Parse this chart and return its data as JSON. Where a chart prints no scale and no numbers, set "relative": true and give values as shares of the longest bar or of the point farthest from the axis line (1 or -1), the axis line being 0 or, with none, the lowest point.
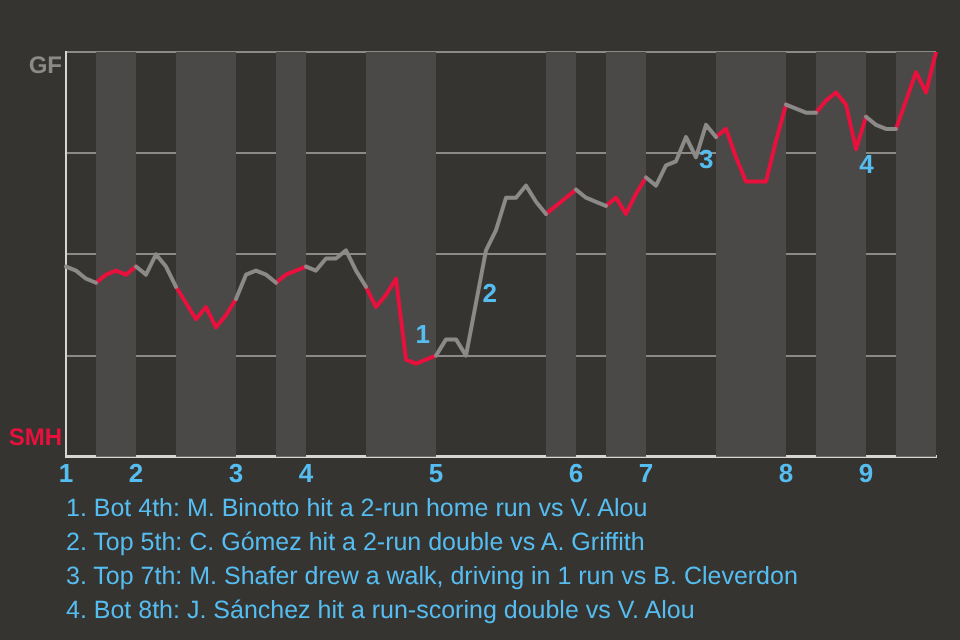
{
  "chart_data": {
    "type": "line",
    "relative": true,
    "categories": [
      "1",
      null,
      null,
      null,
      null,
      null,
      null,
      "2",
      null,
      null,
      null,
      null,
      null,
      null,
      null,
      null,
      null,
      "3",
      null,
      null,
      null,
      null,
      null,
      null,
      "4",
      null,
      null,
      null,
      null,
      null,
      null,
      null,
      null,
      null,
      null,
      null,
      null,
      "5",
      null,
      null,
      null,
      null,
      null,
      null,
      null,
      null,
      null,
      null,
      null,
      null,
      null,
      "6",
      null,
      null,
      null,
      null,
      null,
      null,
      "7",
      null,
      null,
      null,
      null,
      null,
      null,
      null,
      null,
      null,
      null,
      null,
      null,
      null,
      "8",
      null,
      null,
      null,
      null,
      null,
      null,
      null,
      "9",
      null,
      null,
      null,
      null,
      null,
      null,
      null
    ],
    "grid": "y",
    "legend": false,
    "marker": "none",
    "line_style": "solid",
    "series": [
      {
        "color": "#8c8a88",
        "values": [
          0.47,
          0.46,
          0.44,
          0.43,
          null,
          null,
          null,
          0.47,
          0.45,
          0.5,
          0.47,
          0.42,
          null,
          null,
          null,
          null,
          null,
          0.39,
          0.45,
          0.46,
          0.45,
          0.43,
          null,
          null,
          0.47,
          0.46,
          0.49,
          0.49,
          0.51,
          0.46,
          0.42,
          null,
          null,
          null,
          null,
          null,
          null,
          0.25,
          0.29,
          0.29,
          0.25,
          0.38,
          0.51,
          0.56,
          0.64,
          0.64,
          0.67,
          0.63,
          0.6,
          null,
          null,
          0.66,
          0.64,
          0.63,
          0.62,
          null,
          null,
          null,
          0.69,
          0.67,
          0.72,
          0.73,
          0.79,
          0.74,
          0.82,
          0.79,
          null,
          null,
          null,
          null,
          null,
          null,
          0.87,
          0.86,
          0.85,
          0.85,
          null,
          null,
          null,
          null,
          0.84,
          0.82,
          0.81,
          0.81,
          null,
          null,
          null,
          null
        ]
      },
      {
        "color": "#e8103c",
        "values": [
          null,
          null,
          null,
          0.43,
          0.45,
          0.46,
          0.45,
          0.47,
          null,
          null,
          null,
          0.42,
          0.38,
          0.34,
          0.37,
          0.32,
          0.35,
          0.39,
          null,
          null,
          null,
          0.43,
          0.45,
          0.46,
          0.47,
          null,
          null,
          null,
          null,
          null,
          0.42,
          0.37,
          0.4,
          0.44,
          0.24,
          0.23,
          0.24,
          0.25,
          null,
          null,
          null,
          null,
          null,
          null,
          null,
          null,
          null,
          null,
          0.6,
          0.62,
          0.64,
          0.66,
          null,
          null,
          0.62,
          0.64,
          0.6,
          0.65,
          0.69,
          null,
          null,
          null,
          null,
          null,
          null,
          0.79,
          0.81,
          0.74,
          0.68,
          0.68,
          0.68,
          0.78,
          0.87,
          null,
          null,
          0.85,
          0.88,
          0.9,
          0.87,
          0.76,
          0.84,
          null,
          null,
          0.81,
          0.88,
          0.95,
          0.9,
          1
        ]
      }
    ],
    "annotations": [
      "GF",
      "SMH",
      "1",
      "2",
      "3",
      "4",
      "1. Bot 4th: M. Binotto hit a 2-run home run vs V. Alou",
      "2. Top 5th: C. Gómez hit a 2-run double vs A. Griffith",
      "3. Top 7th: M. Shafer drew a walk, driving in 1 run vs B. Cleverdon",
      "4. Bot 8th: J. Sánchez hit a run-scoring double vs V. Alou"
    ]
  }
}
